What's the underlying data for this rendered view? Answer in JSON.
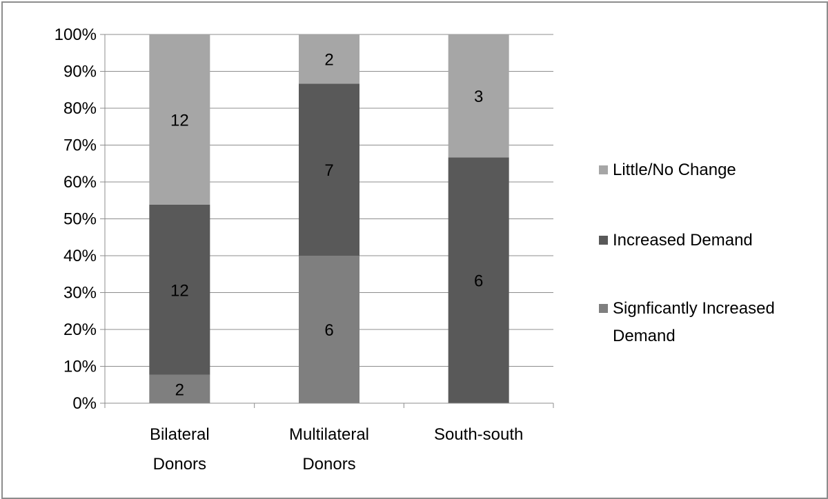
{
  "chart_data": {
    "type": "bar",
    "stacked": "percent",
    "categories": [
      "Bilateral Donors",
      "Multilateral Donors",
      "South-south"
    ],
    "category_lines": [
      [
        "Bilateral",
        "Donors"
      ],
      [
        "Multilateral",
        "Donors"
      ],
      [
        "South-south"
      ]
    ],
    "series": [
      {
        "name": "Signficantly Increased Demand",
        "name_lines": [
          "Signficantly Increased",
          "Demand"
        ],
        "values": [
          2,
          6,
          0
        ],
        "color": "#7f7f7f",
        "labels": [
          "2",
          "6",
          ""
        ]
      },
      {
        "name": "Increased Demand",
        "name_lines": [
          "Increased Demand"
        ],
        "values": [
          12,
          7,
          6
        ],
        "color": "#595959",
        "labels": [
          "12",
          "7",
          "6"
        ]
      },
      {
        "name": "Little/No Change",
        "name_lines": [
          "Little/No Change"
        ],
        "values": [
          12,
          2,
          3
        ],
        "color": "#a6a6a6",
        "labels": [
          "12",
          "2",
          "3"
        ]
      }
    ],
    "yticks": [
      "0%",
      "10%",
      "20%",
      "30%",
      "40%",
      "50%",
      "60%",
      "70%",
      "80%",
      "90%",
      "100%"
    ],
    "ylim": [
      0,
      100
    ],
    "grid": true,
    "legend_position": "right"
  }
}
